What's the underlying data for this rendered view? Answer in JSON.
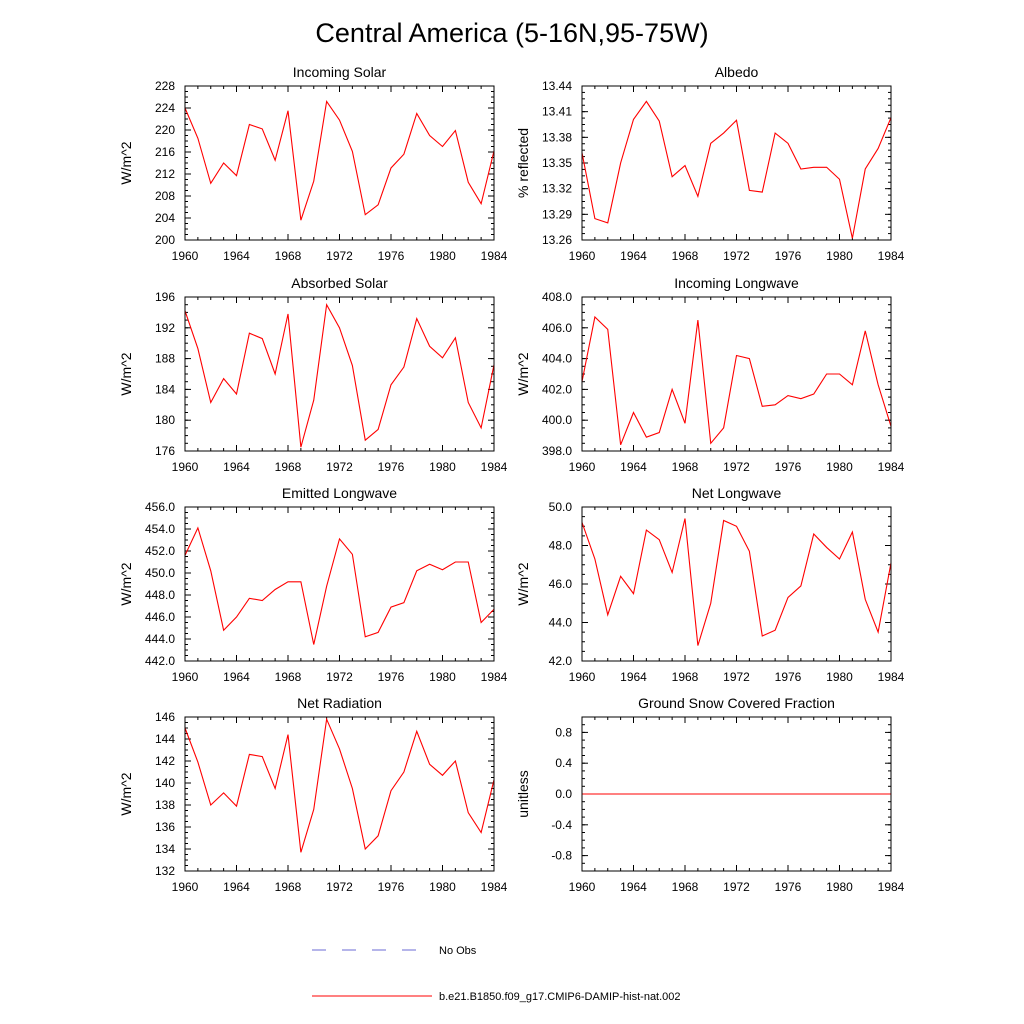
{
  "figure": {
    "title": "Central America (5-16N,95-75W)"
  },
  "legend": {
    "items": [
      {
        "label": "No Obs",
        "color": "#6b6bd6",
        "style": "dashed"
      },
      {
        "label": "b.e21.B1850.f09_g17.CMIP6-DAMIP-hist-nat.002",
        "color": "#ff0000",
        "style": "solid"
      }
    ]
  },
  "chart_data": [
    {
      "type": "line",
      "title": "Incoming Solar",
      "ylabel": "W/m^2",
      "xlim": [
        1960,
        1984
      ],
      "ylim": [
        200,
        228
      ],
      "xticks": [
        1960,
        1964,
        1968,
        1972,
        1976,
        1980,
        1984
      ],
      "yticks": [
        200,
        204,
        208,
        212,
        216,
        220,
        224,
        228
      ],
      "ytick_decimals": 0,
      "color": "#ff0000",
      "x": [
        1960,
        1961,
        1962,
        1963,
        1964,
        1965,
        1966,
        1967,
        1968,
        1969,
        1970,
        1971,
        1972,
        1973,
        1974,
        1975,
        1976,
        1977,
        1978,
        1979,
        1980,
        1981,
        1982,
        1983,
        1984
      ],
      "values": [
        224.0,
        218.5,
        210.3,
        214.0,
        211.7,
        221.0,
        220.2,
        214.5,
        223.5,
        203.6,
        210.7,
        225.2,
        221.8,
        216.1,
        204.6,
        206.4,
        213.1,
        215.6,
        223.0,
        219.0,
        217.0,
        219.9,
        210.5,
        206.6,
        216.2
      ]
    },
    {
      "type": "line",
      "title": "Albedo",
      "ylabel": "% reflected",
      "xlim": [
        1960,
        1984
      ],
      "ylim": [
        13.26,
        13.44
      ],
      "xticks": [
        1960,
        1964,
        1968,
        1972,
        1976,
        1980,
        1984
      ],
      "yticks": [
        13.26,
        13.29,
        13.32,
        13.35,
        13.38,
        13.41,
        13.44
      ],
      "ytick_decimals": 2,
      "color": "#ff0000",
      "x": [
        1960,
        1961,
        1962,
        1963,
        1964,
        1965,
        1966,
        1967,
        1968,
        1969,
        1970,
        1971,
        1972,
        1973,
        1974,
        1975,
        1976,
        1977,
        1978,
        1979,
        1980,
        1981,
        1982,
        1983,
        1984
      ],
      "values": [
        13.362,
        13.285,
        13.28,
        13.35,
        13.401,
        13.422,
        13.399,
        13.334,
        13.347,
        13.311,
        13.373,
        13.385,
        13.4,
        13.318,
        13.316,
        13.385,
        13.373,
        13.343,
        13.345,
        13.345,
        13.331,
        13.262,
        13.343,
        13.367,
        13.403
      ]
    },
    {
      "type": "line",
      "title": "Absorbed Solar",
      "ylabel": "W/m^2",
      "xlim": [
        1960,
        1984
      ],
      "ylim": [
        176,
        196
      ],
      "xticks": [
        1960,
        1964,
        1968,
        1972,
        1976,
        1980,
        1984
      ],
      "yticks": [
        176,
        180,
        184,
        188,
        192,
        196
      ],
      "ytick_decimals": 0,
      "color": "#ff0000",
      "x": [
        1960,
        1961,
        1962,
        1963,
        1964,
        1965,
        1966,
        1967,
        1968,
        1969,
        1970,
        1971,
        1972,
        1973,
        1974,
        1975,
        1976,
        1977,
        1978,
        1979,
        1980,
        1981,
        1982,
        1983,
        1984
      ],
      "values": [
        194.2,
        189.3,
        182.3,
        185.4,
        183.4,
        191.3,
        190.6,
        186.0,
        193.8,
        176.5,
        182.6,
        195.0,
        192.0,
        187.1,
        177.4,
        178.8,
        184.6,
        186.9,
        193.2,
        189.6,
        188.1,
        190.7,
        182.3,
        179.0,
        187.2
      ]
    },
    {
      "type": "line",
      "title": "Incoming Longwave",
      "ylabel": "W/m^2",
      "xlim": [
        1960,
        1984
      ],
      "ylim": [
        398,
        408
      ],
      "xticks": [
        1960,
        1964,
        1968,
        1972,
        1976,
        1980,
        1984
      ],
      "yticks": [
        398,
        400,
        402,
        404,
        406,
        408
      ],
      "ytick_decimals": 1,
      "color": "#ff0000",
      "x": [
        1960,
        1961,
        1962,
        1963,
        1964,
        1965,
        1966,
        1967,
        1968,
        1969,
        1970,
        1971,
        1972,
        1973,
        1974,
        1975,
        1976,
        1977,
        1978,
        1979,
        1980,
        1981,
        1982,
        1983,
        1984
      ],
      "values": [
        402.5,
        406.7,
        405.9,
        398.4,
        400.5,
        398.9,
        399.2,
        402.0,
        399.8,
        406.5,
        398.5,
        399.5,
        404.2,
        404.0,
        400.9,
        401.0,
        401.6,
        401.4,
        401.7,
        403.0,
        403.0,
        402.3,
        405.8,
        402.3,
        399.6
      ]
    },
    {
      "type": "line",
      "title": "Emitted Longwave",
      "ylabel": "W/m^2",
      "xlim": [
        1960,
        1984
      ],
      "ylim": [
        442,
        456
      ],
      "xticks": [
        1960,
        1964,
        1968,
        1972,
        1976,
        1980,
        1984
      ],
      "yticks": [
        442,
        444,
        446,
        448,
        450,
        452,
        454,
        456
      ],
      "ytick_decimals": 1,
      "color": "#ff0000",
      "x": [
        1960,
        1961,
        1962,
        1963,
        1964,
        1965,
        1966,
        1967,
        1968,
        1969,
        1970,
        1971,
        1972,
        1973,
        1974,
        1975,
        1976,
        1977,
        1978,
        1979,
        1980,
        1981,
        1982,
        1983,
        1984
      ],
      "values": [
        451.6,
        454.1,
        450.2,
        444.8,
        446.0,
        447.7,
        447.5,
        448.5,
        449.2,
        449.2,
        443.5,
        448.8,
        453.1,
        451.7,
        444.2,
        444.6,
        446.9,
        447.3,
        450.2,
        450.8,
        450.3,
        451.0,
        451.0,
        445.5,
        446.7
      ]
    },
    {
      "type": "line",
      "title": "Net Longwave",
      "ylabel": "W/m^2",
      "xlim": [
        1960,
        1984
      ],
      "ylim": [
        42,
        50
      ],
      "xticks": [
        1960,
        1964,
        1968,
        1972,
        1976,
        1980,
        1984
      ],
      "yticks": [
        42,
        44,
        46,
        48,
        50
      ],
      "ytick_decimals": 1,
      "color": "#ff0000",
      "x": [
        1960,
        1961,
        1962,
        1963,
        1964,
        1965,
        1966,
        1967,
        1968,
        1969,
        1970,
        1971,
        1972,
        1973,
        1974,
        1975,
        1976,
        1977,
        1978,
        1979,
        1980,
        1981,
        1982,
        1983,
        1984
      ],
      "values": [
        49.2,
        47.3,
        44.4,
        46.4,
        45.5,
        48.8,
        48.3,
        46.6,
        49.4,
        42.8,
        45.0,
        49.3,
        49.0,
        47.7,
        43.3,
        43.6,
        45.3,
        45.9,
        48.6,
        47.9,
        47.3,
        48.7,
        45.2,
        43.5,
        47.1
      ]
    },
    {
      "type": "line",
      "title": "Net Radiation",
      "ylabel": "W/m^2",
      "xlim": [
        1960,
        1984
      ],
      "ylim": [
        132,
        146
      ],
      "xticks": [
        1960,
        1964,
        1968,
        1972,
        1976,
        1980,
        1984
      ],
      "yticks": [
        132,
        134,
        136,
        138,
        140,
        142,
        144,
        146
      ],
      "ytick_decimals": 0,
      "color": "#ff0000",
      "x": [
        1960,
        1961,
        1962,
        1963,
        1964,
        1965,
        1966,
        1967,
        1968,
        1969,
        1970,
        1971,
        1972,
        1973,
        1974,
        1975,
        1976,
        1977,
        1978,
        1979,
        1980,
        1981,
        1982,
        1983,
        1984
      ],
      "values": [
        145.0,
        141.9,
        138.0,
        139.1,
        137.9,
        142.6,
        142.4,
        139.5,
        144.4,
        133.7,
        137.6,
        145.8,
        143.1,
        139.5,
        134.0,
        135.2,
        139.3,
        141.0,
        144.7,
        141.7,
        140.7,
        142.0,
        137.3,
        135.5,
        140.3
      ]
    },
    {
      "type": "line",
      "title": "Ground Snow Covered Fraction",
      "ylabel": "unitless",
      "xlim": [
        1960,
        1984
      ],
      "ylim": [
        -1.0,
        1.0
      ],
      "xticks": [
        1960,
        1964,
        1968,
        1972,
        1976,
        1980,
        1984
      ],
      "yticks": [
        -0.8,
        -0.4,
        0.0,
        0.4,
        0.8
      ],
      "ytick_decimals": 1,
      "color": "#ff0000",
      "x": [
        1960,
        1961,
        1962,
        1963,
        1964,
        1965,
        1966,
        1967,
        1968,
        1969,
        1970,
        1971,
        1972,
        1973,
        1974,
        1975,
        1976,
        1977,
        1978,
        1979,
        1980,
        1981,
        1982,
        1983,
        1984
      ],
      "values": [
        0,
        0,
        0,
        0,
        0,
        0,
        0,
        0,
        0,
        0,
        0,
        0,
        0,
        0,
        0,
        0,
        0,
        0,
        0,
        0,
        0,
        0,
        0,
        0,
        0
      ]
    }
  ]
}
